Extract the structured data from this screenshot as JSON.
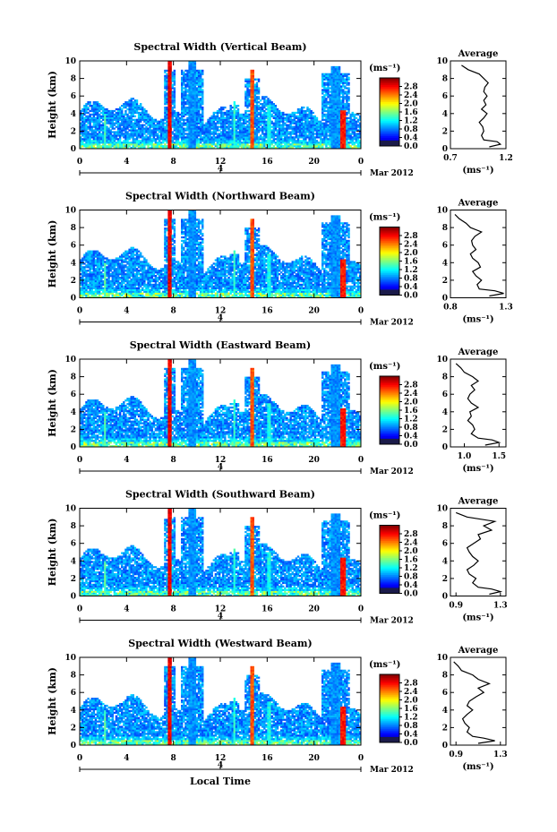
{
  "chart_data": [
    {
      "type": "heatmap",
      "title": "Spectral Width (Vertical Beam)",
      "ylabel": "Height (km)",
      "xticks": [
        "0",
        "4",
        "8",
        "12",
        "16",
        "20",
        "0"
      ],
      "yticks": [
        "0",
        "2",
        "4",
        "6",
        "8",
        "10"
      ],
      "xlim": [
        0,
        24
      ],
      "ylim": [
        0,
        10
      ],
      "date_tick": "4",
      "date_label": "Mar 2012",
      "colorbar": {
        "unit": "(ms⁻¹)",
        "ticks": [
          "0.0",
          "0.4",
          "0.8",
          "1.2",
          "1.6",
          "2.0",
          "2.4",
          "2.8"
        ],
        "range": [
          0,
          3.2
        ]
      },
      "average": {
        "title": "Average",
        "xlabel": "(ms⁻¹)",
        "xticks": [
          "0.7",
          "1.2"
        ],
        "xlim": [
          0.7,
          1.2
        ],
        "yticks": [
          "0",
          "2",
          "4",
          "6",
          "8",
          "10"
        ],
        "ylim": [
          0,
          10
        ],
        "height": [
          0.2,
          0.5,
          0.8,
          1.0,
          1.5,
          2.0,
          2.5,
          3.0,
          3.5,
          4.0,
          4.5,
          5.0,
          5.5,
          6.0,
          6.5,
          7.0,
          7.5,
          8.0,
          8.5,
          9.0,
          9.5
        ],
        "values": [
          1.05,
          1.15,
          1.12,
          1.0,
          0.98,
          1.0,
          0.99,
          0.96,
          1.0,
          1.03,
          0.98,
          1.02,
          1.0,
          1.03,
          1.0,
          1.01,
          1.04,
          1.0,
          0.96,
          0.86,
          0.8
        ]
      }
    },
    {
      "type": "heatmap",
      "title": "Spectral Width (Northward Beam)",
      "ylabel": "Height (km)",
      "xticks": [
        "0",
        "4",
        "8",
        "12",
        "16",
        "20",
        "0"
      ],
      "yticks": [
        "0",
        "2",
        "4",
        "6",
        "8",
        "10"
      ],
      "xlim": [
        0,
        24
      ],
      "ylim": [
        0,
        10
      ],
      "date_tick": "4",
      "date_label": "Mar 2012",
      "colorbar": {
        "unit": "(ms⁻¹)",
        "ticks": [
          "0.0",
          "0.4",
          "0.8",
          "1.2",
          "1.6",
          "2.0",
          "2.4",
          "2.8"
        ],
        "range": [
          0,
          3.2
        ]
      },
      "average": {
        "title": "Average",
        "xlabel": "(ms⁻¹)",
        "xticks": [
          "0.8",
          "1.3"
        ],
        "xlim": [
          0.8,
          1.3
        ],
        "yticks": [
          "0",
          "2",
          "4",
          "6",
          "8",
          "10"
        ],
        "ylim": [
          0,
          10
        ],
        "height": [
          0.2,
          0.5,
          0.8,
          1.0,
          1.5,
          2.0,
          2.5,
          3.0,
          3.5,
          4.0,
          4.5,
          5.0,
          5.5,
          6.0,
          6.5,
          7.0,
          7.5,
          8.0,
          8.5,
          9.0,
          9.5
        ],
        "values": [
          1.15,
          1.28,
          1.2,
          1.06,
          1.04,
          1.08,
          1.03,
          1.0,
          1.07,
          1.05,
          1.0,
          0.98,
          1.03,
          1.0,
          0.99,
          1.02,
          1.08,
          0.98,
          0.94,
          0.88,
          0.84
        ]
      }
    },
    {
      "type": "heatmap",
      "title": "Spectral Width (Eastward Beam)",
      "ylabel": "Height (km)",
      "xticks": [
        "0",
        "4",
        "8",
        "12",
        "16",
        "20",
        "0"
      ],
      "yticks": [
        "0",
        "2",
        "4",
        "6",
        "8",
        "10"
      ],
      "xlim": [
        0,
        24
      ],
      "ylim": [
        0,
        10
      ],
      "date_tick": "4",
      "date_label": "Mar 2012",
      "colorbar": {
        "unit": "(ms⁻¹)",
        "ticks": [
          "0.0",
          "0.4",
          "0.8",
          "1.2",
          "1.6",
          "2.0",
          "2.4",
          "2.8"
        ],
        "range": [
          0,
          3.2
        ]
      },
      "average": {
        "title": "Average",
        "xlabel": "(ms⁻¹)",
        "xticks": [
          "1.0",
          "1.5"
        ],
        "xlim": [
          0.8,
          1.6
        ],
        "yticks": [
          "0",
          "2",
          "4",
          "6",
          "8",
          "10"
        ],
        "ylim": [
          0,
          10
        ],
        "height": [
          0.2,
          0.5,
          0.8,
          1.0,
          1.5,
          2.0,
          2.5,
          3.0,
          3.5,
          4.0,
          4.5,
          5.0,
          5.5,
          6.0,
          6.5,
          7.0,
          7.5,
          8.0,
          8.5,
          9.0,
          9.5
        ],
        "values": [
          1.3,
          1.5,
          1.4,
          1.2,
          1.1,
          1.15,
          1.12,
          1.05,
          1.1,
          1.08,
          1.2,
          1.1,
          1.05,
          1.08,
          1.15,
          1.1,
          1.2,
          1.12,
          1.0,
          0.95,
          0.88
        ]
      }
    },
    {
      "type": "heatmap",
      "title": "Spectral Width (Southward Beam)",
      "ylabel": "Height (km)",
      "xticks": [
        "0",
        "4",
        "8",
        "12",
        "16",
        "20",
        "0"
      ],
      "yticks": [
        "0",
        "2",
        "4",
        "6",
        "8",
        "10"
      ],
      "xlim": [
        0,
        24
      ],
      "ylim": [
        0,
        10
      ],
      "date_tick": "4",
      "date_label": "Mar 2012",
      "colorbar": {
        "unit": "(ms⁻¹)",
        "ticks": [
          "0.0",
          "0.4",
          "0.8",
          "1.2",
          "1.6",
          "2.0",
          "2.4",
          "2.8"
        ],
        "range": [
          0,
          3.2
        ]
      },
      "average": {
        "title": "Average",
        "xlabel": "(ms⁻¹)",
        "xticks": [
          "0.9",
          "1.3"
        ],
        "xlim": [
          0.85,
          1.35
        ],
        "yticks": [
          "0",
          "2",
          "4",
          "6",
          "8",
          "10"
        ],
        "ylim": [
          0,
          10
        ],
        "height": [
          0.2,
          0.5,
          0.8,
          1.0,
          1.5,
          2.0,
          2.5,
          3.0,
          3.5,
          4.0,
          4.5,
          5.0,
          5.5,
          6.0,
          6.5,
          7.0,
          7.5,
          8.0,
          8.5,
          9.0,
          9.5
        ],
        "values": [
          1.2,
          1.3,
          1.22,
          1.1,
          1.05,
          1.08,
          1.02,
          1.0,
          1.06,
          1.1,
          1.05,
          1.02,
          1.0,
          1.06,
          1.12,
          1.1,
          1.22,
          1.15,
          1.25,
          1.0,
          0.9
        ]
      }
    },
    {
      "type": "heatmap",
      "title": "Spectral Width (Westward Beam)",
      "ylabel": "Height (km)",
      "xlabel": "Local Time",
      "xticks": [
        "0",
        "4",
        "8",
        "12",
        "16",
        "20",
        "0"
      ],
      "yticks": [
        "0",
        "2",
        "4",
        "6",
        "8",
        "10"
      ],
      "xlim": [
        0,
        24
      ],
      "ylim": [
        0,
        10
      ],
      "date_tick": "4",
      "date_label": "Mar 2012",
      "colorbar": {
        "unit": "(ms⁻¹)",
        "ticks": [
          "0.0",
          "0.4",
          "0.8",
          "1.2",
          "1.6",
          "2.0",
          "2.4",
          "2.8"
        ],
        "range": [
          0,
          3.2
        ]
      },
      "average": {
        "title": "Average",
        "xlabel": "(ms⁻¹)",
        "xticks": [
          "0.9",
          "1.3"
        ],
        "xlim": [
          0.85,
          1.35
        ],
        "yticks": [
          "0",
          "2",
          "4",
          "6",
          "8",
          "10"
        ],
        "ylim": [
          0,
          10
        ],
        "height": [
          0.2,
          0.5,
          0.8,
          1.0,
          1.5,
          2.0,
          2.5,
          3.0,
          3.5,
          4.0,
          4.5,
          5.0,
          5.5,
          6.0,
          6.5,
          7.0,
          7.5,
          8.0,
          8.5,
          9.0,
          9.5
        ],
        "values": [
          1.1,
          1.25,
          1.15,
          1.05,
          1.0,
          1.02,
          0.98,
          0.96,
          1.0,
          1.05,
          1.0,
          1.02,
          1.08,
          1.15,
          1.1,
          1.2,
          1.1,
          1.05,
          0.95,
          0.92,
          0.88
        ]
      }
    }
  ]
}
